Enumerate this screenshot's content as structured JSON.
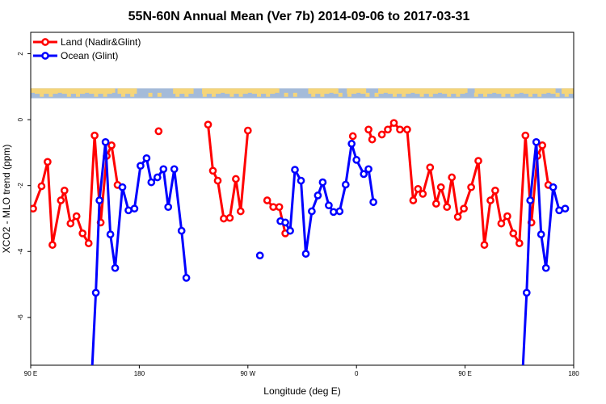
{
  "chart_data": {
    "type": "line",
    "title": "55N-60N Annual Mean (Ver 7b)   2014-09-06 to 2017-03-31",
    "xlabel": "Longitude (deg E)",
    "ylabel": "XCO2 - MLO trend (ppm)",
    "x_ticks": [
      {
        "value": 90,
        "label": "90 E"
      },
      {
        "value": 180,
        "label": "180"
      },
      {
        "value": 270,
        "label": "90 W"
      },
      {
        "value": 360,
        "label": "0"
      },
      {
        "value": 450,
        "label": "90 E"
      },
      {
        "value": 540,
        "label": "180"
      }
    ],
    "y_ticks": [
      {
        "value": -6,
        "label": "-6"
      },
      {
        "value": -4,
        "label": "-4"
      },
      {
        "value": -2,
        "label": "-2"
      },
      {
        "value": 0,
        "label": "0"
      },
      {
        "value": 2,
        "label": "2"
      }
    ],
    "xlim": [
      90,
      540
    ],
    "ylim": [
      -7.45,
      2.65
    ],
    "legend_position": "top-left",
    "land_mask_band": {
      "y_range": [
        0.65,
        0.95
      ],
      "land_color": "#f5d57a",
      "ocean_color": "#a4bbd9"
    },
    "series": [
      {
        "name": "Land (Nadir&Glint)",
        "color": "#ff0000",
        "segments": [
          [
            [
              92,
              -2.7
            ],
            [
              99,
              -2.02
            ],
            [
              104,
              -1.28
            ],
            [
              108,
              -3.8
            ],
            [
              115,
              -2.45
            ],
            [
              118,
              -2.15
            ],
            [
              123,
              -3.15
            ],
            [
              128,
              -2.93
            ],
            [
              133,
              -3.45
            ],
            [
              138,
              -3.75
            ],
            [
              143,
              -0.48
            ],
            [
              148,
              -3.12
            ],
            [
              153,
              -1.1
            ],
            [
              157,
              -0.78
            ],
            [
              162,
              -1.98
            ]
          ],
          [
            [
              196,
              -0.35
            ]
          ],
          [
            [
              237,
              -0.15
            ],
            [
              241,
              -1.55
            ],
            [
              245,
              -1.85
            ],
            [
              250,
              -3.0
            ],
            [
              255,
              -2.98
            ],
            [
              260,
              -1.8
            ],
            [
              264,
              -2.78
            ],
            [
              270,
              -0.33
            ]
          ],
          [
            [
              286,
              -2.45
            ],
            [
              291,
              -2.65
            ],
            [
              296,
              -2.65
            ],
            [
              301,
              -3.45
            ]
          ],
          [
            [
              357,
              -0.5
            ]
          ],
          [
            [
              370,
              -0.3
            ],
            [
              373,
              -0.6
            ]
          ],
          [
            [
              381,
              -0.45
            ],
            [
              386,
              -0.3
            ],
            [
              391,
              -0.1
            ],
            [
              396,
              -0.3
            ],
            [
              402,
              -0.3
            ],
            [
              407,
              -2.45
            ],
            [
              411,
              -2.1
            ],
            [
              415,
              -2.25
            ],
            [
              421,
              -1.45
            ],
            [
              426,
              -2.55
            ],
            [
              430,
              -2.05
            ],
            [
              435,
              -2.65
            ],
            [
              439,
              -1.75
            ],
            [
              444,
              -2.95
            ],
            [
              449,
              -2.7
            ],
            [
              455,
              -2.05
            ],
            [
              461,
              -1.25
            ],
            [
              466,
              -3.8
            ],
            [
              471,
              -2.45
            ],
            [
              475,
              -2.15
            ],
            [
              480,
              -3.15
            ],
            [
              485,
              -2.93
            ],
            [
              490,
              -3.45
            ],
            [
              495,
              -3.75
            ],
            [
              500,
              -0.48
            ],
            [
              505,
              -3.12
            ],
            [
              510,
              -1.1
            ],
            [
              514,
              -0.78
            ],
            [
              519,
              -1.98
            ]
          ]
        ]
      },
      {
        "name": "Ocean (Glint)",
        "color": "#0000ff",
        "segments": [
          [
            [
              141,
              -7.45
            ],
            [
              144,
              -5.25
            ],
            [
              147,
              -2.45
            ],
            [
              152,
              -0.68
            ],
            [
              156,
              -3.48
            ],
            [
              160,
              -4.5
            ],
            [
              166,
              -2.05
            ],
            [
              171,
              -2.75
            ],
            [
              176,
              -2.7
            ],
            [
              181,
              -1.4
            ],
            [
              186,
              -1.17
            ],
            [
              190,
              -1.9
            ],
            [
              195,
              -1.75
            ],
            [
              200,
              -1.5
            ],
            [
              204,
              -2.65
            ],
            [
              209,
              -1.5
            ],
            [
              215,
              -3.37
            ],
            [
              219,
              -4.8
            ]
          ],
          [
            [
              280,
              -4.12
            ]
          ],
          [
            [
              297,
              -3.08
            ],
            [
              301,
              -3.12
            ],
            [
              305,
              -3.37
            ],
            [
              309,
              -1.52
            ],
            [
              314,
              -1.85
            ],
            [
              318,
              -4.07
            ],
            [
              323,
              -2.78
            ],
            [
              328,
              -2.3
            ],
            [
              332,
              -1.9
            ],
            [
              337,
              -2.6
            ],
            [
              341,
              -2.8
            ],
            [
              346,
              -2.78
            ],
            [
              351,
              -1.97
            ],
            [
              356,
              -0.73
            ],
            [
              360,
              -1.22
            ],
            [
              366,
              -1.65
            ],
            [
              370,
              -1.5
            ],
            [
              374,
              -2.5
            ]
          ],
          [
            [
              498,
              -7.45
            ],
            [
              501,
              -5.25
            ],
            [
              504,
              -2.45
            ],
            [
              509,
              -0.68
            ],
            [
              513,
              -3.48
            ],
            [
              517,
              -4.5
            ],
            [
              523,
              -2.05
            ],
            [
              528,
              -2.75
            ],
            [
              533,
              -2.7
            ]
          ]
        ]
      }
    ]
  }
}
